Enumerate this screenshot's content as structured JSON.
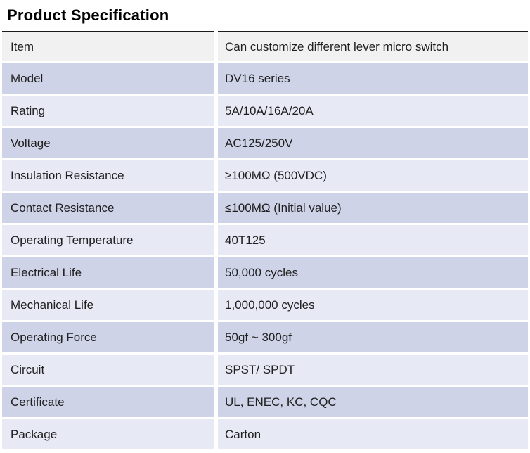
{
  "page_title": "Product Specification",
  "colors": {
    "row-gray": "#f1f1f1",
    "row-dark": "#cfd3e8",
    "row-light": "#e7e9f5",
    "table-border": "#1b1b1b",
    "text": "#202020"
  },
  "table": {
    "rows": [
      {
        "label": "Item",
        "value": "Can customize different lever micro switch"
      },
      {
        "label": "Model",
        "value": "DV16 series"
      },
      {
        "label": "Rating",
        "value": "5A/10A/16A/20A"
      },
      {
        "label": "Voltage",
        "value": "AC125/250V"
      },
      {
        "label": "Insulation Resistance",
        "value": "≥100MΩ (500VDC)"
      },
      {
        "label": "Contact Resistance",
        "value": "≤100MΩ (Initial value)"
      },
      {
        "label": "Operating Temperature",
        "value": "40T125"
      },
      {
        "label": "Electrical Life",
        "value": "50,000 cycles"
      },
      {
        "label": "Mechanical Life",
        "value": "1,000,000 cycles"
      },
      {
        "label": "Operating Force",
        "value": "50gf ~ 300gf"
      },
      {
        "label": "Circuit",
        "value": "SPST/ SPDT"
      },
      {
        "label": "Certificate",
        "value": "UL, ENEC, KC, CQC"
      },
      {
        "label": "Package",
        "value": "Carton"
      }
    ]
  }
}
